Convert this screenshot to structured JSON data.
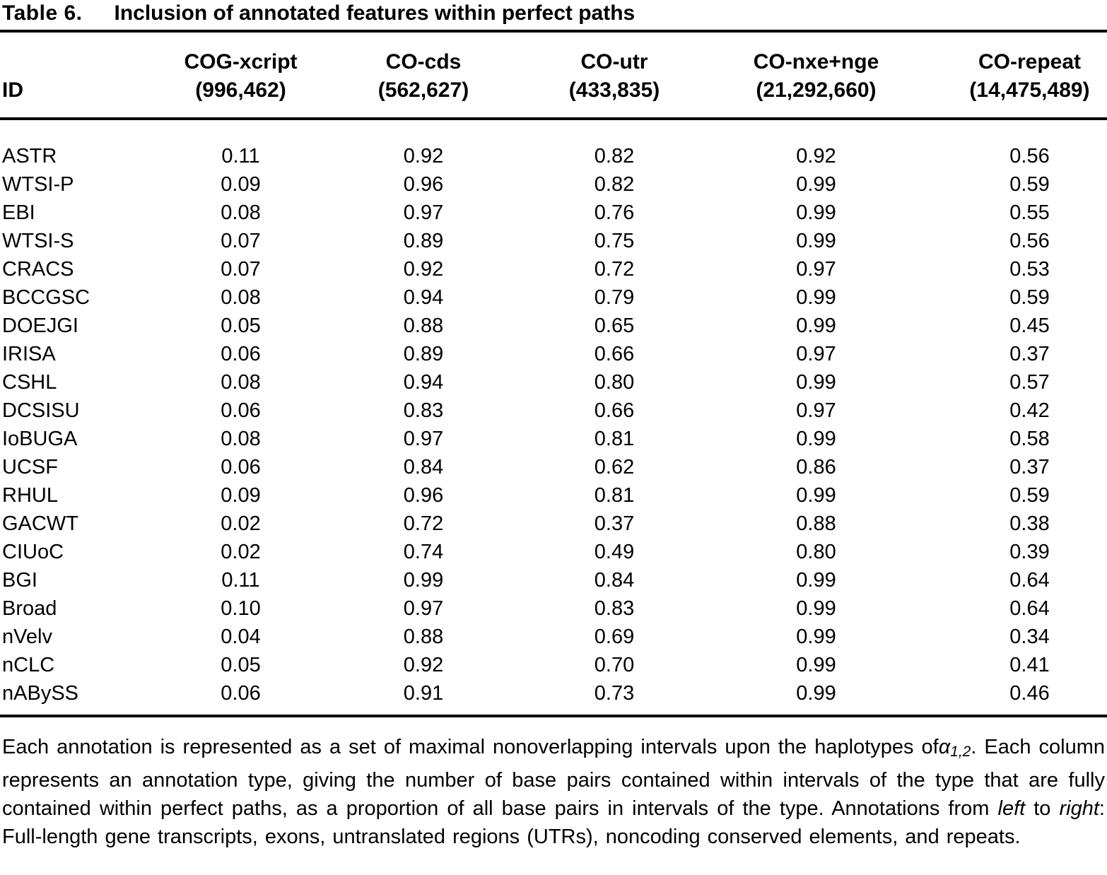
{
  "title": {
    "label": "Table 6.",
    "caption": "Inclusion of annotated features within perfect paths"
  },
  "table": {
    "header": {
      "id": "ID",
      "cols": [
        {
          "name": "COG-xcript",
          "total": "(996,462)"
        },
        {
          "name": "CO-cds",
          "total": "(562,627)"
        },
        {
          "name": "CO-utr",
          "total": "(433,835)"
        },
        {
          "name": "CO-nxe+nge",
          "total": "(21,292,660)"
        },
        {
          "name": "CO-repeat",
          "total": "(14,475,489)"
        }
      ]
    },
    "rows": [
      {
        "id": "ASTR",
        "values": [
          "0.11",
          "0.92",
          "0.82",
          "0.92",
          "0.56"
        ]
      },
      {
        "id": "WTSI-P",
        "values": [
          "0.09",
          "0.96",
          "0.82",
          "0.99",
          "0.59"
        ]
      },
      {
        "id": "EBI",
        "values": [
          "0.08",
          "0.97",
          "0.76",
          "0.99",
          "0.55"
        ]
      },
      {
        "id": "WTSI-S",
        "values": [
          "0.07",
          "0.89",
          "0.75",
          "0.99",
          "0.56"
        ]
      },
      {
        "id": "CRACS",
        "values": [
          "0.07",
          "0.92",
          "0.72",
          "0.97",
          "0.53"
        ]
      },
      {
        "id": "BCCGSC",
        "values": [
          "0.08",
          "0.94",
          "0.79",
          "0.99",
          "0.59"
        ]
      },
      {
        "id": "DOEJGI",
        "values": [
          "0.05",
          "0.88",
          "0.65",
          "0.99",
          "0.45"
        ]
      },
      {
        "id": "IRISA",
        "values": [
          "0.06",
          "0.89",
          "0.66",
          "0.97",
          "0.37"
        ]
      },
      {
        "id": "CSHL",
        "values": [
          "0.08",
          "0.94",
          "0.80",
          "0.99",
          "0.57"
        ]
      },
      {
        "id": "DCSISU",
        "values": [
          "0.06",
          "0.83",
          "0.66",
          "0.97",
          "0.42"
        ]
      },
      {
        "id": "IoBUGA",
        "values": [
          "0.08",
          "0.97",
          "0.81",
          "0.99",
          "0.58"
        ]
      },
      {
        "id": "UCSF",
        "values": [
          "0.06",
          "0.84",
          "0.62",
          "0.86",
          "0.37"
        ]
      },
      {
        "id": "RHUL",
        "values": [
          "0.09",
          "0.96",
          "0.81",
          "0.99",
          "0.59"
        ]
      },
      {
        "id": "GACWT",
        "values": [
          "0.02",
          "0.72",
          "0.37",
          "0.88",
          "0.38"
        ]
      },
      {
        "id": "CIUoC",
        "values": [
          "0.02",
          "0.74",
          "0.49",
          "0.80",
          "0.39"
        ]
      },
      {
        "id": "BGI",
        "values": [
          "0.11",
          "0.99",
          "0.84",
          "0.99",
          "0.64"
        ]
      },
      {
        "id": "Broad",
        "values": [
          "0.10",
          "0.97",
          "0.83",
          "0.99",
          "0.64"
        ]
      },
      {
        "id": "nVelv",
        "values": [
          "0.04",
          "0.88",
          "0.69",
          "0.99",
          "0.34"
        ]
      },
      {
        "id": "nCLC",
        "values": [
          "0.05",
          "0.92",
          "0.70",
          "0.99",
          "0.41"
        ]
      },
      {
        "id": "nABySS",
        "values": [
          "0.06",
          "0.91",
          "0.73",
          "0.99",
          "0.46"
        ]
      }
    ]
  },
  "footnote": {
    "segments": [
      {
        "text": "Each annotation is represented as a set of maximal nonoverlapping intervals upon the haplotypes of",
        "style": "normal"
      },
      {
        "text": "α",
        "style": "italic"
      },
      {
        "text": "1,2",
        "style": "italic-sub"
      },
      {
        "text": ". Each column represents an annotation type, giving the number of base pairs contained within intervals of the type that are fully contained within perfect paths, as a proportion of all base pairs in intervals of the type. Annotations from ",
        "style": "normal"
      },
      {
        "text": "left",
        "style": "italic"
      },
      {
        "text": " to ",
        "style": "normal"
      },
      {
        "text": "right",
        "style": "italic"
      },
      {
        "text": ": Full-length gene transcripts, exons, untranslated regions (UTRs), noncoding conserved elements, and repeats.",
        "style": "normal"
      }
    ]
  }
}
